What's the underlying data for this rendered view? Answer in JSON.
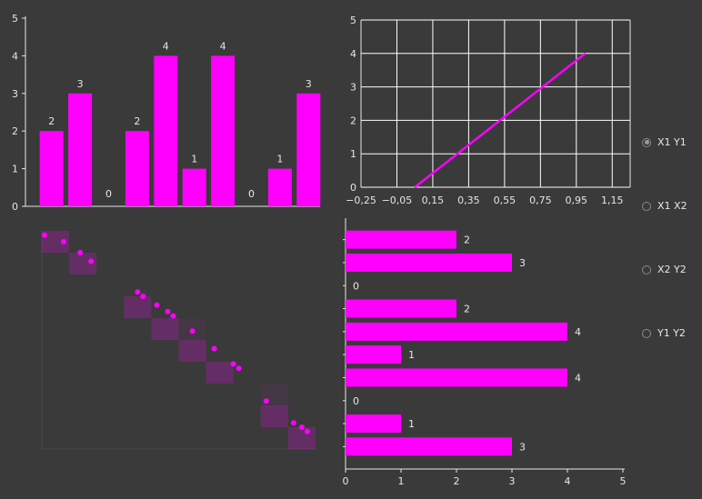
{
  "theme": {
    "accent": "#ff00ff",
    "background": "#3a3a3a",
    "text": "#e6e6e6",
    "grid": "#ffffff"
  },
  "radio_group": {
    "options": [
      {
        "label": "X1 Y1",
        "checked": true
      },
      {
        "label": "X1 X2",
        "checked": false
      },
      {
        "label": "X2 Y2",
        "checked": false
      },
      {
        "label": "Y1 Y2",
        "checked": false
      }
    ]
  },
  "chart_data": [
    {
      "type": "bar",
      "orientation": "vertical",
      "values": [
        2,
        3,
        0,
        2,
        4,
        1,
        4,
        0,
        1,
        3
      ],
      "data_labels": true,
      "ylim": [
        0,
        5
      ],
      "yticks": [
        0,
        1,
        2,
        3,
        4,
        5
      ],
      "color": "#ff00ff",
      "grid": false
    },
    {
      "type": "line",
      "x": [
        0.05,
        1.0
      ],
      "y": [
        0,
        4
      ],
      "xlim": [
        -0.25,
        1.25
      ],
      "ylim": [
        0,
        5
      ],
      "xticks": [
        "−0,25",
        "−0,05",
        "0,15",
        "0,35",
        "0,55",
        "0,75",
        "0,95",
        "1,15"
      ],
      "xtick_values": [
        -0.25,
        -0.05,
        0.15,
        0.35,
        0.55,
        0.75,
        0.95,
        1.15
      ],
      "yticks": [
        0,
        1,
        2,
        3,
        4,
        5
      ],
      "color": "#ff00ff",
      "grid": true
    },
    {
      "type": "scatter",
      "points": [
        [
          0.1,
          9.8
        ],
        [
          0.8,
          9.5
        ],
        [
          1.4,
          9.0
        ],
        [
          1.8,
          8.6
        ],
        [
          3.5,
          7.2
        ],
        [
          3.7,
          7.0
        ],
        [
          4.2,
          6.6
        ],
        [
          4.6,
          6.3
        ],
        [
          4.8,
          6.1
        ],
        [
          5.5,
          5.4
        ],
        [
          6.3,
          4.6
        ],
        [
          7.0,
          3.9
        ],
        [
          7.2,
          3.7
        ],
        [
          8.2,
          2.2
        ],
        [
          9.2,
          1.2
        ],
        [
          9.5,
          1.0
        ],
        [
          9.7,
          0.8
        ]
      ],
      "highlight_boxes": [
        [
          0,
          9
        ],
        [
          1,
          8
        ],
        [
          3,
          6
        ],
        [
          4,
          5
        ],
        [
          5,
          4
        ],
        [
          6,
          3
        ],
        [
          8,
          1
        ],
        [
          9,
          0
        ]
      ],
      "faint_boxes": [
        [
          5,
          5
        ],
        [
          8,
          2
        ]
      ],
      "xlim": [
        0,
        10
      ],
      "ylim": [
        0,
        10
      ],
      "color": "#ff00ff",
      "grid": false
    },
    {
      "type": "bar",
      "orientation": "horizontal",
      "values": [
        2,
        3,
        0,
        2,
        4,
        1,
        4,
        0,
        1,
        3
      ],
      "data_labels": true,
      "xlim": [
        0,
        5
      ],
      "xticks": [
        0,
        1,
        2,
        3,
        4,
        5
      ],
      "color": "#ff00ff",
      "grid": false
    }
  ]
}
